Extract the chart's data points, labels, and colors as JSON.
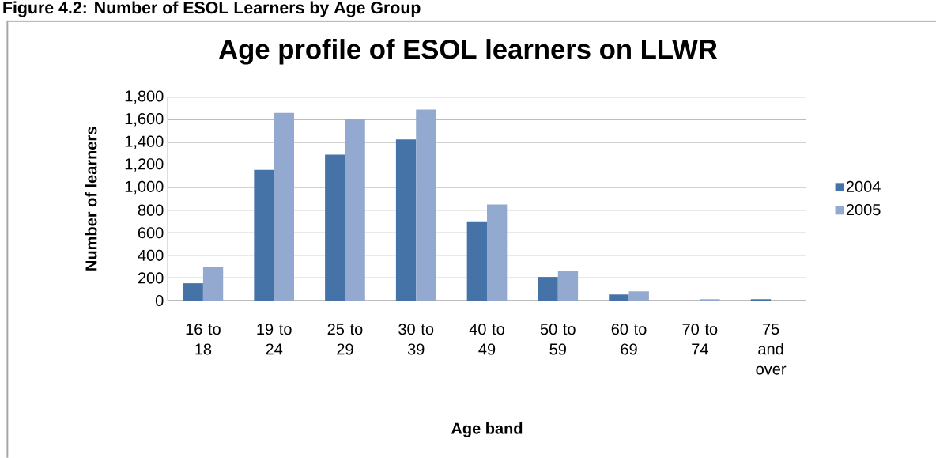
{
  "chart_data": {
    "type": "bar",
    "title": "Age profile of ESOL learners on LLWR",
    "annotations": [
      "Figure 4.2: Number of ESOL Learners by Age Group"
    ],
    "xlabel": "Age band",
    "ylabel": "Number of learners",
    "categories": [
      "16 to 18",
      "19 to 24",
      "25 to 29",
      "30 to 39",
      "40 to 49",
      "50 to 59",
      "60 to 69",
      "70 to 74",
      "75 and over"
    ],
    "series": [
      {
        "name": "2004",
        "color": "#4572a7",
        "values": [
          153,
          1155,
          1290,
          1425,
          695,
          209,
          54,
          0,
          12
        ]
      },
      {
        "name": "2005",
        "color": "#93a9cf",
        "values": [
          298,
          1660,
          1605,
          1690,
          850,
          263,
          82,
          12,
          0
        ]
      }
    ],
    "ylim": [
      0,
      1800
    ],
    "yticks": [
      0,
      {
        "value": 200,
        "label": "200"
      },
      {
        "value": 400,
        "label": "400"
      },
      {
        "value": 600,
        "label": "600"
      },
      {
        "value": 800,
        "label": "800"
      },
      {
        "value": 1000,
        "label": "1,000"
      },
      {
        "value": 1200,
        "label": "1,200"
      },
      {
        "value": 1400,
        "label": "1,400"
      },
      {
        "value": 1600,
        "label": "1,600"
      },
      {
        "value": 1800,
        "label": "1,800"
      }
    ],
    "grid": "y",
    "legend": "right"
  }
}
